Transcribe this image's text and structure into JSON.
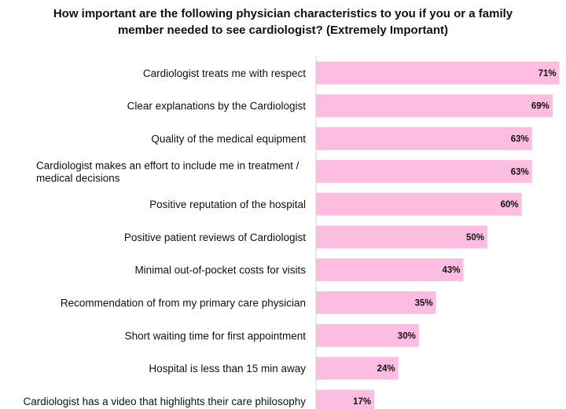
{
  "chart_data": {
    "type": "bar",
    "orientation": "horizontal",
    "title": "How important are the following physician characteristics to you if you or a family member needed to see cardiologist? (Extremely Important)",
    "title_lines": [
      "How important are the following physician characteristics to you if you or a family",
      "member needed to see cardiologist? (Extremely Important)"
    ],
    "categories": [
      [
        "Cardiologist treats me with respect"
      ],
      [
        "Clear explanations by the Cardiologist"
      ],
      [
        "Quality of the medical equipment"
      ],
      [
        "Cardiologist makes an effort to include me in treatment /",
        "medical decisions"
      ],
      [
        "Positive reputation of the hospital"
      ],
      [
        "Positive patient reviews of Cardiologist"
      ],
      [
        "Minimal out-of-pocket costs for visits"
      ],
      [
        "Recommendation of from my primary care physician"
      ],
      [
        "Short waiting time for first appointment"
      ],
      [
        "Hospital is less than 15 min away"
      ],
      [
        "Cardiologist  has a video that highlights their care philosophy"
      ]
    ],
    "values": [
      71,
      69,
      63,
      63,
      60,
      50,
      43,
      35,
      30,
      24,
      17
    ],
    "value_labels": [
      "71%",
      "69%",
      "63%",
      "63%",
      "60%",
      "50%",
      "43%",
      "35%",
      "30%",
      "24%",
      "17%"
    ],
    "unit": "%",
    "xlim": [
      0,
      72
    ],
    "bar_color": "#fcbde0",
    "axis_color": "#d0d0d0",
    "grid": false,
    "legend": "none"
  }
}
